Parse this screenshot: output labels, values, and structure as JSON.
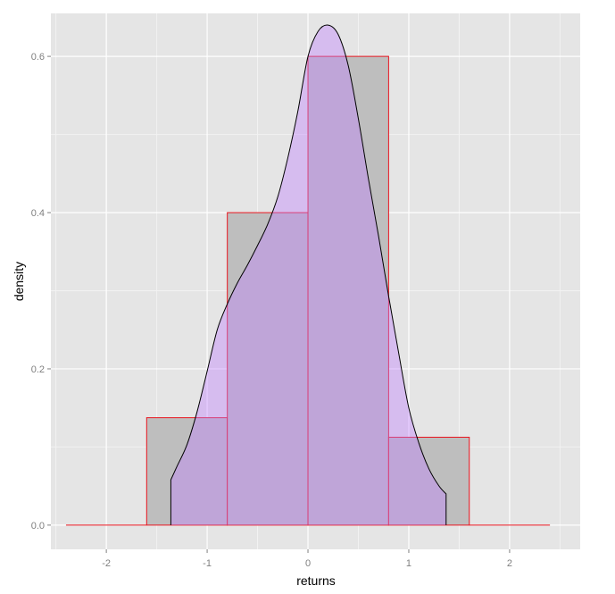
{
  "chart_data": {
    "type": "bar",
    "title": "",
    "xlabel": "returns",
    "ylabel": "density",
    "xlim": [
      -2.55,
      2.7
    ],
    "ylim": [
      -0.031,
      0.655
    ],
    "x_ticks": [
      -2,
      -1,
      0,
      1,
      2
    ],
    "x_tick_labels": [
      "-2",
      "-1",
      "0",
      "1",
      "2"
    ],
    "y_ticks": [
      0.0,
      0.2,
      0.4,
      0.6
    ],
    "y_tick_labels": [
      "0.0",
      "0.2",
      "0.4",
      "0.6"
    ],
    "grid": true,
    "histogram": {
      "bins": [
        {
          "x0": -2.4,
          "x1": -1.6,
          "density": 0.0
        },
        {
          "x0": -1.6,
          "x1": -0.8,
          "density": 0.1375
        },
        {
          "x0": -0.8,
          "x1": 0.0,
          "density": 0.4
        },
        {
          "x0": 0.0,
          "x1": 0.8,
          "density": 0.6
        },
        {
          "x0": 0.8,
          "x1": 1.6,
          "density": 0.1125
        },
        {
          "x0": 1.6,
          "x1": 2.4,
          "density": 0.0
        }
      ]
    },
    "density_curve": {
      "x": [
        -1.36,
        -1.3,
        -1.2,
        -1.1,
        -1.0,
        -0.9,
        -0.8,
        -0.7,
        -0.6,
        -0.5,
        -0.4,
        -0.3,
        -0.2,
        -0.1,
        0.0,
        0.1,
        0.2,
        0.3,
        0.4,
        0.5,
        0.6,
        0.7,
        0.8,
        0.9,
        1.0,
        1.1,
        1.2,
        1.3,
        1.37
      ],
      "y": [
        0.058,
        0.075,
        0.103,
        0.145,
        0.197,
        0.25,
        0.283,
        0.31,
        0.333,
        0.358,
        0.385,
        0.42,
        0.47,
        0.53,
        0.6,
        0.632,
        0.64,
        0.628,
        0.588,
        0.52,
        0.443,
        0.37,
        0.293,
        0.22,
        0.15,
        0.105,
        0.072,
        0.05,
        0.04
      ]
    },
    "colors": {
      "panel_bg": "#e5e5e5",
      "grid_major": "#ffffff",
      "grid_minor": "#f2f2f2",
      "bar_fill": "#bebebe",
      "bar_stroke": "#e8141e",
      "density_fill": "#c080ff",
      "density_fill_opacity": 0.4,
      "density_stroke": "#000000",
      "tick_text": "#7f7f7f",
      "axis_title": "#000000"
    }
  }
}
